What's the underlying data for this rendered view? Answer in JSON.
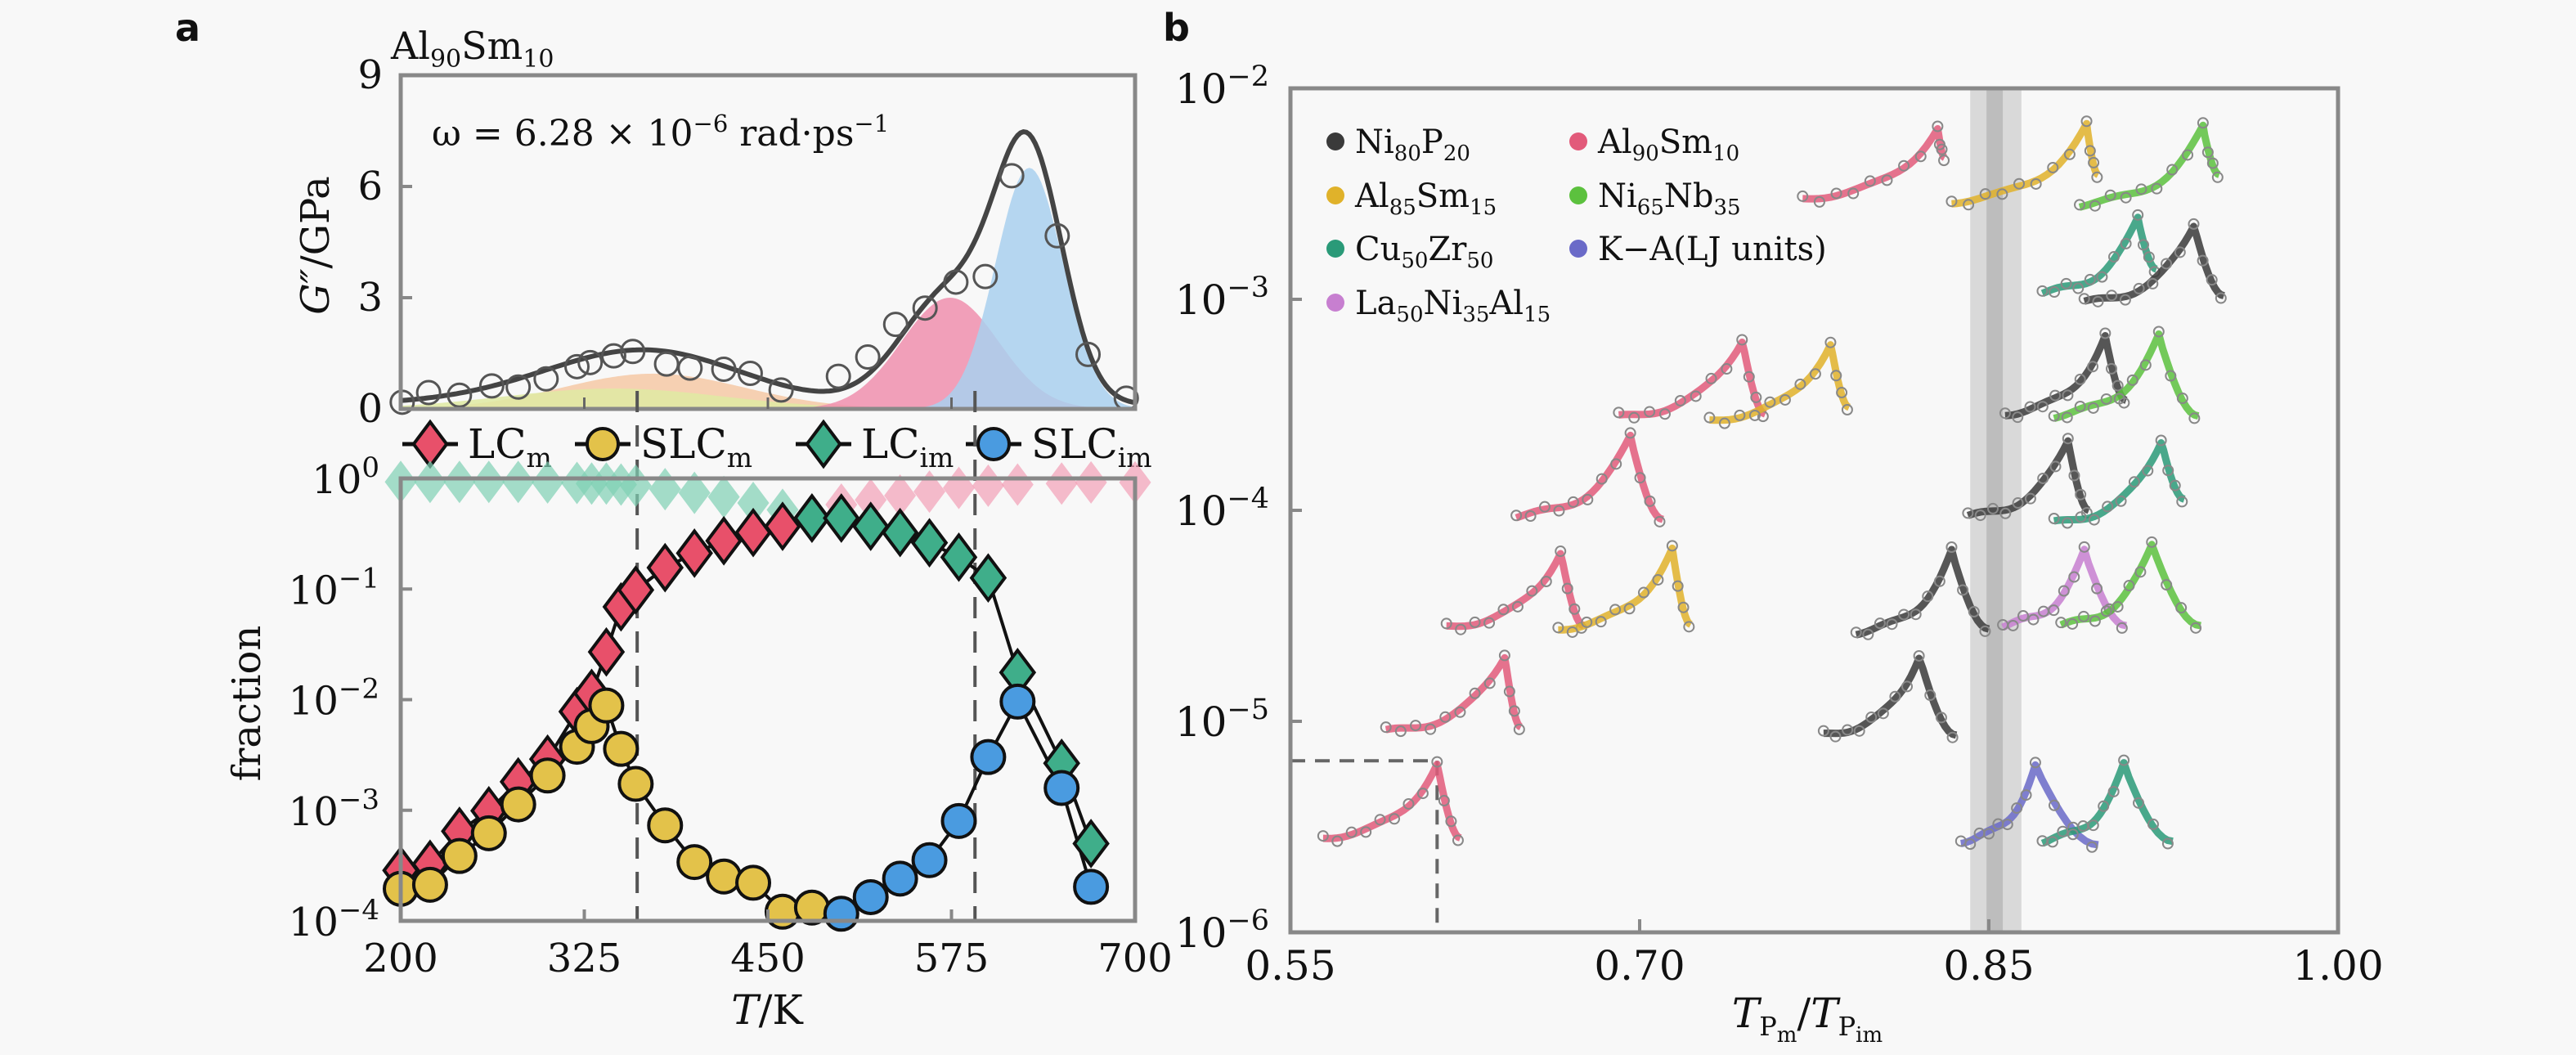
{
  "figure": {
    "panel_a_letter": "a",
    "panel_b_letter": "b"
  },
  "chart_data": [
    {
      "id": "a-top",
      "type": "area",
      "title": "Al90Sm10",
      "title_parts": [
        [
          "Al",
          ""
        ],
        [
          "90",
          "sub"
        ],
        [
          "Sm",
          ""
        ],
        [
          "10",
          "sub"
        ]
      ],
      "annotation": "ω = 6.28 × 10⁻⁶ rad·ps⁻¹",
      "annotation_parts": [
        [
          "ω = 6.28 × 10",
          ""
        ],
        [
          "−6",
          "sup"
        ],
        [
          " rad·ps",
          ""
        ],
        [
          "−1",
          "sup"
        ]
      ],
      "xlabel": "",
      "ylabel": "G″/GPa",
      "xlim": [
        200,
        700
      ],
      "ylim": [
        0,
        9
      ],
      "yticks": [
        0,
        3,
        6,
        9
      ],
      "xticks": [
        325,
        450,
        575
      ],
      "grid": false,
      "components": [
        {
          "name": "LCm component",
          "color": "#f6c9a6",
          "center": 372,
          "height": 0.95,
          "sigma": 62
        },
        {
          "name": "SLCm component",
          "color": "#dfeaa2",
          "center": 345,
          "height": 0.55,
          "sigma": 75
        },
        {
          "name": "LCim component",
          "color": "#f08fae",
          "center": 574,
          "height": 3.0,
          "sigma": 33
        },
        {
          "name": "SLCim component",
          "color": "#a9d0ef",
          "center": 628,
          "height": 6.5,
          "sigma": 23
        }
      ],
      "fit_color": "#444444",
      "points": {
        "name": "simulation data",
        "x": [
          201,
          219,
          240,
          262,
          280,
          299,
          320,
          329,
          345,
          358,
          381,
          397,
          420,
          438,
          459,
          498,
          518,
          537,
          557,
          578,
          598,
          616,
          647,
          668,
          694
        ],
        "y": [
          0.18,
          0.44,
          0.37,
          0.62,
          0.59,
          0.81,
          1.14,
          1.25,
          1.43,
          1.55,
          1.21,
          1.1,
          1.07,
          0.96,
          0.51,
          0.88,
          1.4,
          2.28,
          2.72,
          3.42,
          3.57,
          6.29,
          4.67,
          1.47,
          0.29
        ]
      }
    },
    {
      "id": "a-bottom",
      "type": "scatter",
      "xlabel": "T/K",
      "ylabel": "fraction",
      "xlim": [
        200,
        700
      ],
      "ylim": [
        0.0001,
        1
      ],
      "yscale": "log",
      "xticks": [
        200,
        325,
        450,
        575,
        700
      ],
      "ytick_exponents": [
        0,
        -1,
        -2,
        -3,
        -4
      ],
      "grid": false,
      "vlines": [
        {
          "x": 361,
          "style": "dashed"
        },
        {
          "x": 591,
          "style": "dashed"
        }
      ],
      "legend": {
        "placement": "top",
        "entries": [
          {
            "label": "LC",
            "sub": "m",
            "marker": "diamond",
            "color": "#e8506a"
          },
          {
            "label": "SLC",
            "sub": "m",
            "marker": "circle",
            "color": "#e3c24a"
          },
          {
            "label": "LC",
            "sub": "im",
            "marker": "diamond",
            "color": "#3fae8a"
          },
          {
            "label": "SLC",
            "sub": "im",
            "marker": "circle",
            "color": "#4a9be0"
          }
        ]
      },
      "series": [
        {
          "name": "LCm",
          "marker": "diamond",
          "color": "#e8506a",
          "x": [
            200,
            220,
            240,
            260,
            280,
            300,
            320,
            330,
            340,
            350,
            360,
            380,
            400,
            420,
            440,
            460,
            480
          ],
          "y": [
            0.000286,
            0.000325,
            0.000646,
            0.00099,
            0.00181,
            0.0029,
            0.0078,
            0.0114,
            0.027,
            0.069,
            0.098,
            0.156,
            0.211,
            0.273,
            0.324,
            0.369,
            0.438
          ]
        },
        {
          "name": "SLCm",
          "marker": "circle",
          "color": "#e3c24a",
          "x": [
            200,
            220,
            240,
            260,
            280,
            300,
            320,
            330,
            340,
            350,
            360,
            380,
            400,
            420,
            440,
            460,
            480
          ],
          "y": [
            0.000195,
            0.000212,
            0.000386,
            0.00062,
            0.00113,
            0.00206,
            0.00375,
            0.00576,
            0.00885,
            0.00359,
            0.00173,
            0.00073,
            0.00034,
            0.000252,
            0.000221,
            0.000121,
            0.000132
          ]
        },
        {
          "name": "LCim",
          "marker": "diamond",
          "color": "#3fae8a",
          "x": [
            480,
            500,
            520,
            540,
            560,
            580,
            600,
            620,
            650,
            670
          ],
          "y": [
            0.438,
            0.438,
            0.369,
            0.324,
            0.262,
            0.194,
            0.126,
            0.0176,
            0.00266,
            0.0005
          ]
        },
        {
          "name": "SLCim",
          "marker": "circle",
          "color": "#4a9be0",
          "x": [
            500,
            520,
            540,
            560,
            580,
            600,
            620,
            650,
            670
          ],
          "y": [
            0.000116,
            0.000164,
            0.000241,
            0.000354,
            0.0008,
            0.00303,
            0.0096,
            0.00159,
            0.000203
          ]
        },
        {
          "name": "LCim complement (faded)",
          "marker": "diamond",
          "color": "#7fd0b4",
          "faded": true,
          "x": [
            200,
            220,
            240,
            260,
            280,
            300,
            320,
            330,
            340,
            350,
            360,
            380,
            400,
            420,
            440,
            460
          ],
          "y": [
            0.93,
            0.93,
            0.93,
            0.93,
            0.93,
            0.92,
            0.91,
            0.9,
            0.9,
            0.88,
            0.86,
            0.8,
            0.74,
            0.68,
            0.6,
            0.52
          ]
        },
        {
          "name": "LCm complement (faded)",
          "marker": "diamond",
          "color": "#f2a0b6",
          "faded": true,
          "x": [
            500,
            520,
            540,
            560,
            580,
            600,
            620,
            650,
            670,
            700
          ],
          "y": [
            0.58,
            0.64,
            0.7,
            0.76,
            0.82,
            0.86,
            0.88,
            0.9,
            0.92,
            0.92
          ]
        }
      ]
    },
    {
      "id": "b",
      "type": "line",
      "xlabel": "T_Pm/T_Pim",
      "ylabel": "",
      "xlim": [
        0.55,
        1.0
      ],
      "xticks": [
        0.55,
        0.7,
        0.85,
        1.0
      ],
      "xtick_labels": [
        "0.55",
        "0.70",
        "0.85",
        "1.00"
      ],
      "ylim": [
        1e-06,
        0.01
      ],
      "yscale": "log",
      "ytick_exponents": [
        -2,
        -3,
        -4,
        -5,
        -6
      ],
      "grid": false,
      "shaded_band": {
        "outer": [
          0.842,
          0.864
        ],
        "inner": [
          0.849,
          0.856
        ],
        "center": 0.85
      },
      "guide_point": {
        "x": 0.613,
        "y": 6.5e-06,
        "style": "dashed"
      },
      "legend": {
        "placement": "top-left",
        "entries": [
          {
            "name": "Ni80P20",
            "parts": [
              [
                "Ni",
                ""
              ],
              [
                "80",
                "sub"
              ],
              [
                "P",
                ""
              ],
              [
                "20",
                "sub"
              ]
            ],
            "color": "#3a3a3a"
          },
          {
            "name": "Al90Sm10",
            "parts": [
              [
                "Al",
                ""
              ],
              [
                "90",
                "sub"
              ],
              [
                "Sm",
                ""
              ],
              [
                "10",
                "sub"
              ]
            ],
            "color": "#e25a7a"
          },
          {
            "name": "Al85Sm15",
            "parts": [
              [
                "Al",
                ""
              ],
              [
                "85",
                "sub"
              ],
              [
                "Sm",
                ""
              ],
              [
                "15",
                "sub"
              ]
            ],
            "color": "#e0b22a"
          },
          {
            "name": "Ni65Nb35",
            "parts": [
              [
                "Ni",
                ""
              ],
              [
                "65",
                "sub"
              ],
              [
                "Nb",
                ""
              ],
              [
                "35",
                "sub"
              ]
            ],
            "color": "#5cc13e"
          },
          {
            "name": "Cu50Zr50",
            "parts": [
              [
                "Cu",
                ""
              ],
              [
                "50",
                "sub"
              ],
              [
                "Zr",
                ""
              ],
              [
                "50",
                "sub"
              ]
            ],
            "color": "#2a9a78"
          },
          {
            "name": "K−A(LJ units)",
            "parts": [
              [
                "K−A(LJ units)",
                ""
              ]
            ],
            "color": "#6a6ac8"
          },
          {
            "name": "La50Ni35Al15",
            "parts": [
              [
                "La",
                ""
              ],
              [
                "50",
                "sub"
              ],
              [
                "Ni",
                ""
              ],
              [
                "35",
                "sub"
              ],
              [
                "Al",
                ""
              ],
              [
                "15",
                "sub"
              ]
            ],
            "color": "#c77fd0"
          }
        ]
      },
      "curves": [
        {
          "system": "Al90Sm10",
          "x_start": 0.77,
          "x_peak": 0.828,
          "x_end": 0.831,
          "y_start": 0.003,
          "y_peak": 0.0065,
          "y_end": 0.0047
        },
        {
          "system": "Al85Sm15",
          "x_start": 0.834,
          "x_peak": 0.892,
          "x_end": 0.897,
          "y_start": 0.0029,
          "y_peak": 0.0067,
          "y_end": 0.0039
        },
        {
          "system": "Ni65Nb35",
          "x_start": 0.889,
          "x_peak": 0.942,
          "x_end": 0.949,
          "y_start": 0.0028,
          "y_peak": 0.0065,
          "y_end": 0.0039
        },
        {
          "system": "Cu50Zr50",
          "x_start": 0.873,
          "x_peak": 0.914,
          "x_end": 0.922,
          "y_start": 0.00107,
          "y_peak": 0.00241,
          "y_end": 0.00139
        },
        {
          "system": "Ni80P20",
          "x_start": 0.891,
          "x_peak": 0.938,
          "x_end": 0.951,
          "y_start": 0.00096,
          "y_peak": 0.00224,
          "y_end": 0.00104
        },
        {
          "system": "Al90Sm10",
          "x_start": 0.691,
          "x_peak": 0.744,
          "x_end": 0.754,
          "y_start": 0.000276,
          "y_peak": 0.000643,
          "y_end": 0.000286
        },
        {
          "system": "Al85Sm15",
          "x_start": 0.73,
          "x_peak": 0.782,
          "x_end": 0.79,
          "y_start": 0.000266,
          "y_peak": 0.000619,
          "y_end": 0.000308
        },
        {
          "system": "Ni80P20",
          "x_start": 0.857,
          "x_peak": 0.9,
          "x_end": 0.909,
          "y_start": 0.000286,
          "y_peak": 0.000667,
          "y_end": 0.000332
        },
        {
          "system": "Ni65Nb35",
          "x_start": 0.878,
          "x_peak": 0.923,
          "x_end": 0.94,
          "y_start": 0.00028,
          "y_peak": 0.000667,
          "y_end": 0.00028
        },
        {
          "system": "Al90Sm10",
          "x_start": 0.647,
          "x_peak": 0.696,
          "x_end": 0.71,
          "y_start": 9.31e-05,
          "y_peak": 0.000222,
          "y_end": 9.06e-05
        },
        {
          "system": "Ni80P20",
          "x_start": 0.841,
          "x_peak": 0.884,
          "x_end": 0.893,
          "y_start": 9.31e-05,
          "y_peak": 0.000214,
          "y_end": 0.0001
        },
        {
          "system": "Cu50Zr50",
          "x_start": 0.878,
          "x_peak": 0.924,
          "x_end": 0.934,
          "y_start": 8.67e-05,
          "y_peak": 0.000214,
          "y_end": 0.000113
        },
        {
          "system": "Al90Sm10",
          "x_start": 0.617,
          "x_peak": 0.666,
          "x_end": 0.676,
          "y_start": 2.79e-05,
          "y_peak": 6.37e-05,
          "y_end": 2.84e-05
        },
        {
          "system": "Al85Sm15",
          "x_start": 0.665,
          "x_peak": 0.714,
          "x_end": 0.722,
          "y_start": 2.74e-05,
          "y_peak": 6.61e-05,
          "y_end": 2.88e-05
        },
        {
          "system": "Ni80P20",
          "x_start": 0.793,
          "x_peak": 0.834,
          "x_end": 0.85,
          "y_start": 2.64e-05,
          "y_peak": 6.37e-05,
          "y_end": 2.74e-05
        },
        {
          "system": "La50Ni35Al15",
          "x_start": 0.856,
          "x_peak": 0.891,
          "x_end": 0.909,
          "y_start": 2.84e-05,
          "y_peak": 6.37e-05,
          "y_end": 2.84e-05
        },
        {
          "system": "Ni65Nb35",
          "x_start": 0.881,
          "x_peak": 0.92,
          "x_end": 0.941,
          "y_start": 2.84e-05,
          "y_peak": 6.86e-05,
          "y_end": 2.84e-05
        },
        {
          "system": "Al90Sm10",
          "x_start": 0.591,
          "x_peak": 0.642,
          "x_end": 0.649,
          "y_start": 8.9e-06,
          "y_peak": 2.04e-05,
          "y_end": 9.4e-06
        },
        {
          "system": "Ni80P20",
          "x_start": 0.779,
          "x_peak": 0.82,
          "x_end": 0.836,
          "y_start": 8.6e-06,
          "y_peak": 2.04e-05,
          "y_end": 8.6e-06
        },
        {
          "system": "Al90Sm10",
          "x_start": 0.564,
          "x_peak": 0.613,
          "x_end": 0.623,
          "y_start": 2.8e-06,
          "y_peak": 6.3e-06,
          "y_end": 2.8e-06
        },
        {
          "system": "K−A(LJ units)",
          "x_start": 0.838,
          "x_peak": 0.87,
          "x_end": 0.897,
          "y_start": 2.7e-06,
          "y_peak": 6.1e-06,
          "y_end": 2.6e-06
        },
        {
          "system": "Cu50Zr50",
          "x_start": 0.873,
          "x_peak": 0.908,
          "x_end": 0.929,
          "y_start": 2.7e-06,
          "y_peak": 6.2e-06,
          "y_end": 2.7e-06
        }
      ]
    }
  ]
}
